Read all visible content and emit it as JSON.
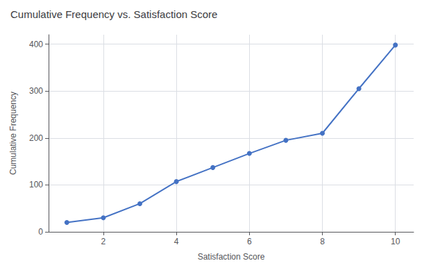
{
  "chart_data": {
    "type": "line",
    "title": "Cumulative Frequency vs. Satisfaction Score",
    "xlabel": "Satisfaction Score",
    "ylabel": "Cumulative Frequency",
    "x": [
      1,
      2,
      3,
      4,
      5,
      6,
      7,
      8,
      9,
      10
    ],
    "values": [
      20,
      30,
      60,
      107,
      137,
      167,
      195,
      210,
      305,
      398
    ],
    "color": "#4472C4",
    "marker": "circle",
    "xlim": [
      0.5,
      10.5
    ],
    "xticks": [
      2,
      4,
      6,
      8,
      10
    ],
    "ylim": [
      0,
      420
    ],
    "yticks": [
      0,
      100,
      200,
      300,
      400
    ],
    "grid": true
  }
}
